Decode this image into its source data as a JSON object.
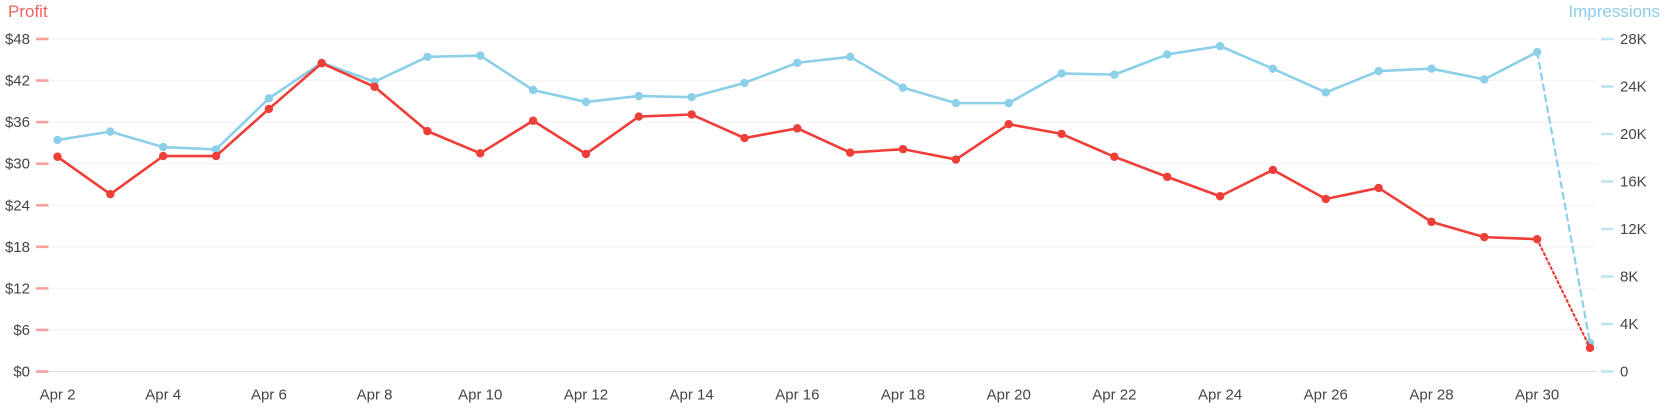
{
  "chart_data": {
    "type": "line",
    "categories": [
      "Apr 2",
      "Apr 3",
      "Apr 4",
      "Apr 5",
      "Apr 6",
      "Apr 7",
      "Apr 8",
      "Apr 9",
      "Apr 10",
      "Apr 11",
      "Apr 12",
      "Apr 13",
      "Apr 14",
      "Apr 15",
      "Apr 16",
      "Apr 17",
      "Apr 18",
      "Apr 19",
      "Apr 20",
      "Apr 21",
      "Apr 22",
      "Apr 23",
      "Apr 24",
      "Apr 25",
      "Apr 26",
      "Apr 27",
      "Apr 28",
      "Apr 29",
      "Apr 30",
      "May 1"
    ],
    "x_axis": {
      "tick_labels": [
        "Apr 2",
        "Apr 4",
        "Apr 6",
        "Apr 8",
        "Apr 10",
        "Apr 12",
        "Apr 14",
        "Apr 16",
        "Apr 18",
        "Apr 20",
        "Apr 22",
        "Apr 24",
        "Apr 26",
        "Apr 28",
        "Apr 30"
      ],
      "label_every": 2,
      "label_color": "#454545"
    },
    "left_axis": {
      "title": "Profit",
      "min": 0,
      "max": 48,
      "step": 6,
      "tick_labels": [
        "$0",
        "$6",
        "$12",
        "$18",
        "$24",
        "$30",
        "$36",
        "$42",
        "$48"
      ],
      "title_color": "#f2635e",
      "tick_color": "#f5a29e",
      "label_color": "#454545"
    },
    "right_axis": {
      "title": "Impressions",
      "min": 0,
      "max": 28000,
      "step": 4000,
      "tick_labels": [
        "0",
        "4K",
        "8K",
        "12K",
        "16K",
        "20K",
        "24K",
        "28K"
      ],
      "title_color": "#8fcbe9",
      "tick_color": "#bfe3f2",
      "label_color": "#454545"
    },
    "series": [
      {
        "name": "Profit",
        "axis": "left",
        "color": "#ee3e38",
        "forecast_tail_points": 1,
        "forecast_style": "dot",
        "values": [
          31.0,
          25.6,
          31.1,
          31.1,
          37.9,
          44.5,
          41.1,
          34.7,
          31.5,
          36.2,
          31.4,
          36.8,
          37.1,
          33.7,
          35.1,
          31.6,
          32.1,
          30.6,
          35.7,
          34.3,
          31.0,
          28.1,
          25.3,
          29.1,
          24.9,
          26.5,
          21.6,
          19.4,
          19.1,
          3.4
        ]
      },
      {
        "name": "Impressions",
        "axis": "right",
        "color": "#8ccfe9",
        "forecast_tail_points": 1,
        "forecast_style": "dash",
        "values": [
          19500,
          20200,
          18900,
          18700,
          23000,
          26000,
          24400,
          26500,
          26600,
          23700,
          22700,
          23200,
          23100,
          24300,
          26000,
          26500,
          23900,
          22600,
          22600,
          25100,
          25000,
          26700,
          27400,
          25500,
          23500,
          25300,
          25500,
          24600,
          26900,
          2400
        ]
      }
    ],
    "grid": {
      "color": "#f2f2f2",
      "baseline_color": "#dcdcdc",
      "background": "#ffffff"
    }
  }
}
